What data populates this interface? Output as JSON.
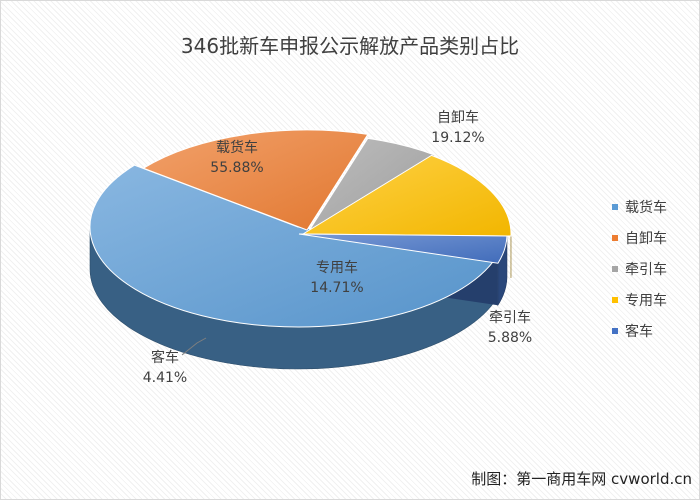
{
  "chart_data": {
    "type": "pie",
    "title": "346批新车申报公示解放产品类别占比",
    "legend_position": "right",
    "slices": [
      {
        "name": "载货车",
        "value": 55.88,
        "label": "55.88%",
        "color": "#5b9bd5"
      },
      {
        "name": "自卸车",
        "value": 19.12,
        "label": "19.12%",
        "color": "#ed7d31"
      },
      {
        "name": "牵引车",
        "value": 5.88,
        "label": "5.88%",
        "color": "#a5a5a5"
      },
      {
        "name": "专用车",
        "value": 14.71,
        "label": "14.71%",
        "color": "#ffc000"
      },
      {
        "name": "客车",
        "value": 4.41,
        "label": "4.41%",
        "color": "#4472c4"
      }
    ]
  },
  "credit": "制图：第一商用车网 cvworld.cn"
}
